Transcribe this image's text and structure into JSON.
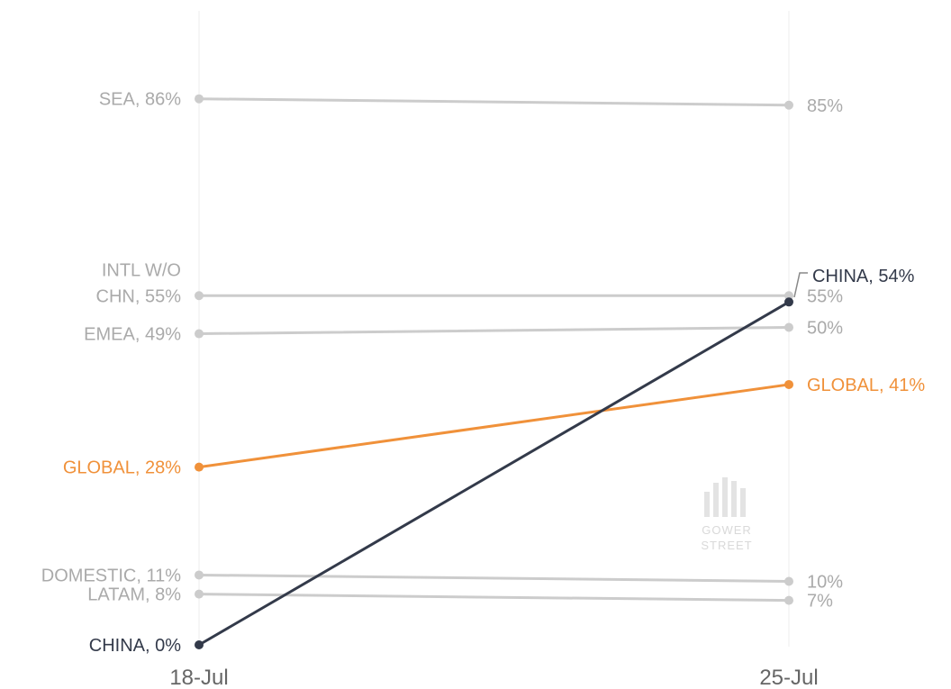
{
  "chart_data": {
    "type": "line",
    "categories": [
      "18-Jul",
      "25-Jul"
    ],
    "ylim": [
      0,
      100
    ],
    "grid": false,
    "watermark": [
      "GOWER",
      "STREET"
    ],
    "series": [
      {
        "name": "SEA",
        "values": [
          86,
          85
        ],
        "color": "#cccccc",
        "left_label": "SEA, 86%",
        "right_label": "85%"
      },
      {
        "name": "INTL W/O CHN",
        "values": [
          55,
          55
        ],
        "color": "#cccccc",
        "left_label": [
          "INTL W/O",
          "CHN, 55%"
        ],
        "right_label": "55%"
      },
      {
        "name": "EMEA",
        "values": [
          49,
          50
        ],
        "color": "#cccccc",
        "left_label": "EMEA, 49%",
        "right_label": "50%"
      },
      {
        "name": "GLOBAL",
        "values": [
          28,
          41
        ],
        "color": "#f0913a",
        "left_label": "GLOBAL, 28%",
        "right_label": "GLOBAL, 41%"
      },
      {
        "name": "DOMESTIC",
        "values": [
          11,
          10
        ],
        "color": "#cccccc",
        "left_label": "DOMESTIC, 11%",
        "right_label": "10%"
      },
      {
        "name": "LATAM",
        "values": [
          8,
          7
        ],
        "color": "#cccccc",
        "left_label": "LATAM, 8%",
        "right_label": "7%"
      },
      {
        "name": "CHINA",
        "values": [
          0,
          54
        ],
        "color": "#333a4a",
        "left_label": "CHINA, 0%",
        "right_label": "CHINA, 54%"
      }
    ]
  }
}
